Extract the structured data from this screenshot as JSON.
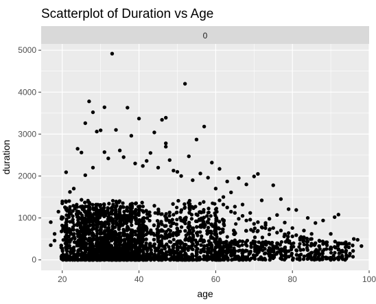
{
  "chart_data": {
    "type": "scatter",
    "title": "Scatterplot of Duration vs Age",
    "facet_label": "0",
    "xlabel": "age",
    "ylabel": "duration",
    "xlim": [
      14.5,
      100
    ],
    "ylim": [
      -250,
      5150
    ],
    "x_ticks": [
      20,
      40,
      60,
      80,
      100
    ],
    "y_ticks": [
      0,
      1000,
      2000,
      3000,
      4000,
      5000
    ],
    "grid": true,
    "legend": "none",
    "colors": {
      "panel": "#ebebeb",
      "strip": "#d9d9d9",
      "grid": "#ffffff",
      "point": "#000000"
    },
    "dense_region": {
      "x_min": 18,
      "x_max": 60,
      "y_min": 0,
      "y_max": 1200,
      "age_peak": 33
    },
    "outliers": [
      [
        33,
        4918
      ],
      [
        52,
        4200
      ],
      [
        27,
        3780
      ],
      [
        37,
        3630
      ],
      [
        31,
        3640
      ],
      [
        28,
        3520
      ],
      [
        40,
        3370
      ],
      [
        46,
        3340
      ],
      [
        47,
        3390
      ],
      [
        30,
        3090
      ],
      [
        26,
        3260
      ],
      [
        34,
        3100
      ],
      [
        57,
        3180
      ],
      [
        29,
        3060
      ],
      [
        44,
        3040
      ],
      [
        38,
        2960
      ],
      [
        55,
        2870
      ],
      [
        24,
        2650
      ],
      [
        31,
        2570
      ],
      [
        35,
        2610
      ],
      [
        47,
        2780
      ],
      [
        47,
        2700
      ],
      [
        53,
        2470
      ],
      [
        59,
        2320
      ],
      [
        25,
        2560
      ],
      [
        21,
        2090
      ],
      [
        42,
        2360
      ],
      [
        49,
        2130
      ],
      [
        61,
        2170
      ],
      [
        66,
        1950
      ],
      [
        71,
        2050
      ],
      [
        70,
        1990
      ],
      [
        63,
        1870
      ],
      [
        68,
        1800
      ],
      [
        75,
        1780
      ],
      [
        72,
        1420
      ],
      [
        77,
        1450
      ],
      [
        79,
        1210
      ],
      [
        81,
        1190
      ],
      [
        76,
        1070
      ],
      [
        84,
        1000
      ],
      [
        86,
        880
      ],
      [
        88,
        940
      ],
      [
        91,
        1020
      ],
      [
        92,
        1080
      ],
      [
        96,
        500
      ],
      [
        97,
        480
      ],
      [
        95,
        150
      ],
      [
        98,
        330
      ],
      [
        93,
        220
      ],
      [
        87,
        330
      ],
      [
        90,
        620
      ],
      [
        83,
        700
      ],
      [
        85,
        620
      ],
      [
        74,
        980
      ],
      [
        73,
        880
      ],
      [
        69,
        1120
      ],
      [
        65,
        1270
      ],
      [
        67,
        1320
      ],
      [
        62,
        1500
      ],
      [
        64,
        1610
      ],
      [
        78,
        890
      ],
      [
        80,
        760
      ],
      [
        82,
        520
      ],
      [
        89,
        420
      ],
      [
        17,
        900
      ],
      [
        17,
        350
      ],
      [
        18,
        620
      ],
      [
        19,
        1150
      ],
      [
        18,
        460
      ],
      [
        56,
        2060
      ],
      [
        58,
        1960
      ],
      [
        43,
        2550
      ],
      [
        36,
        2450
      ],
      [
        39,
        2300
      ],
      [
        32,
        2420
      ],
      [
        45,
        2200
      ],
      [
        50,
        2100
      ],
      [
        23,
        1700
      ],
      [
        22,
        1620
      ],
      [
        54,
        1900
      ],
      [
        51,
        2000
      ],
      [
        60,
        1700
      ],
      [
        48,
        2380
      ],
      [
        41,
        2240
      ],
      [
        28,
        2200
      ],
      [
        26,
        2020
      ],
      [
        62,
        1320
      ],
      [
        64,
        1150
      ],
      [
        66,
        980
      ],
      [
        68,
        940
      ],
      [
        70,
        860
      ],
      [
        72,
        780
      ],
      [
        74,
        720
      ],
      [
        76,
        650
      ],
      [
        78,
        610
      ],
      [
        80,
        560
      ],
      [
        82,
        480
      ],
      [
        84,
        440
      ],
      [
        86,
        400
      ],
      [
        88,
        380
      ],
      [
        90,
        300
      ],
      [
        92,
        260
      ],
      [
        94,
        220
      ],
      [
        61,
        1420
      ],
      [
        63,
        1250
      ],
      [
        65,
        1120
      ],
      [
        67,
        1050
      ],
      [
        69,
        960
      ],
      [
        71,
        900
      ],
      [
        73,
        830
      ],
      [
        75,
        760
      ],
      [
        77,
        700
      ],
      [
        79,
        640
      ],
      [
        81,
        590
      ],
      [
        83,
        540
      ],
      [
        85,
        500
      ],
      [
        87,
        460
      ],
      [
        89,
        350
      ],
      [
        91,
        310
      ]
    ]
  }
}
